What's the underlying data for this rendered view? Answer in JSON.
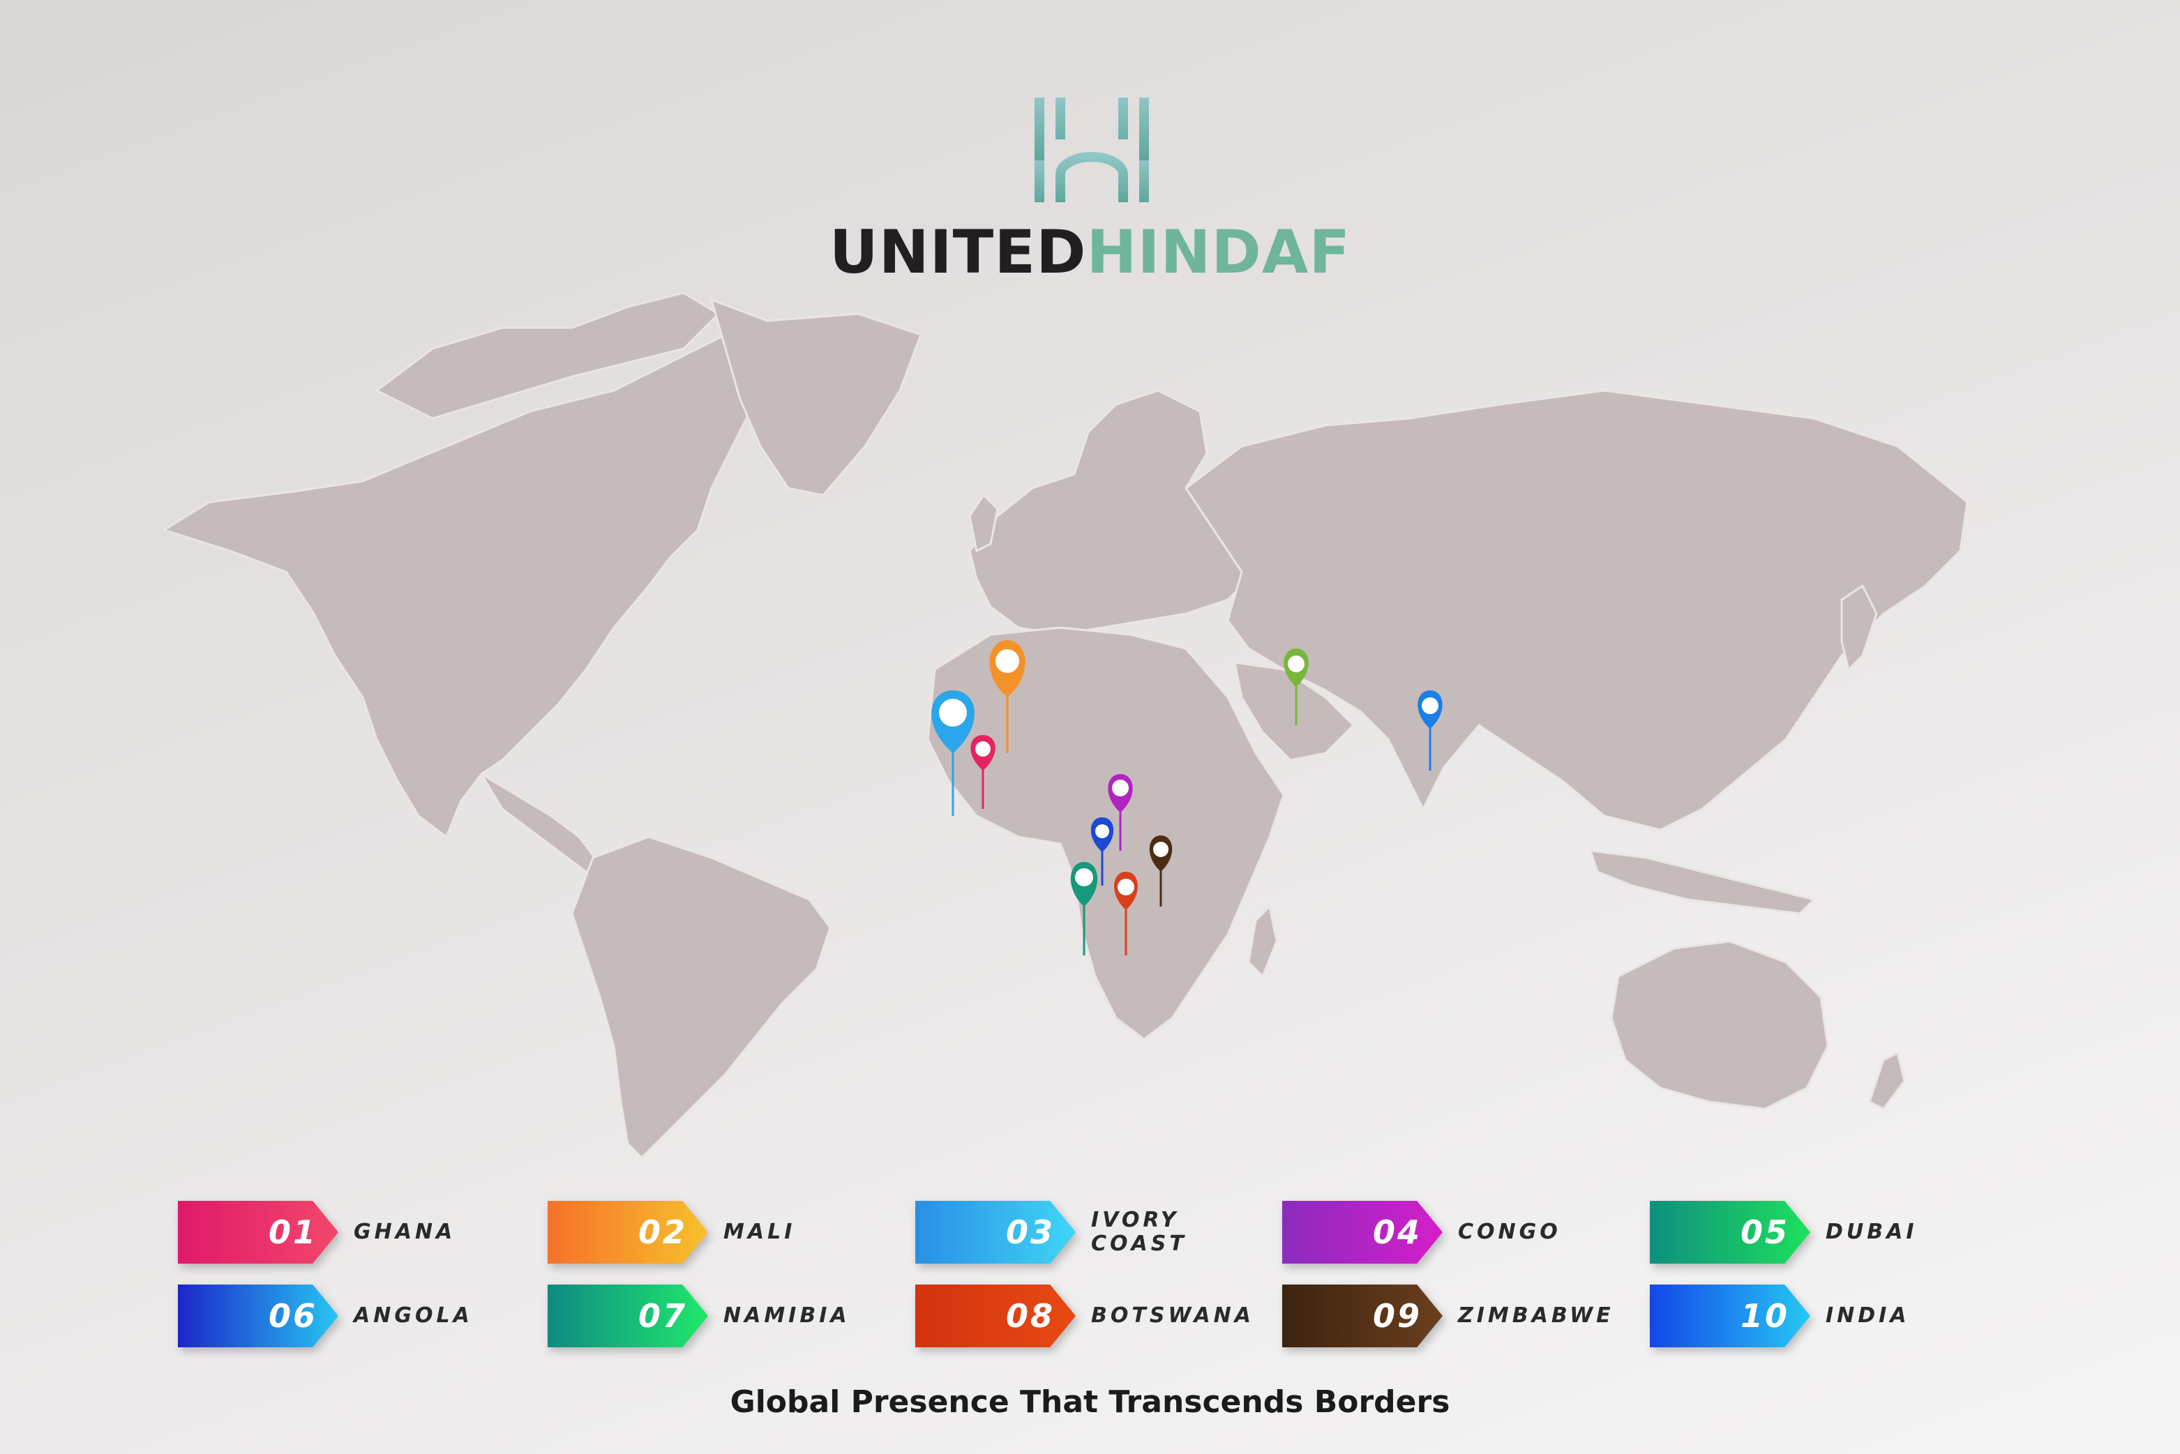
{
  "brand": {
    "name_part1": "UNITED",
    "name_part2": "HINDAF"
  },
  "tagline": "Global Presence That Transcends Borders",
  "colors": {
    "map_land": "#c6bbbb",
    "map_border": "#e9e2e2",
    "brand_teal": "#6fb59a",
    "brand_dark": "#231f20"
  },
  "legend": [
    {
      "number": "01",
      "country": "GHANA",
      "from": "#e0196a",
      "to": "#f2476b"
    },
    {
      "number": "02",
      "country": "MALI",
      "from": "#f5722a",
      "to": "#f7c12c"
    },
    {
      "number": "03",
      "country": "IVORY COAST",
      "from": "#2a8fe4",
      "to": "#3fd6f5"
    },
    {
      "number": "04",
      "country": "CONGO",
      "from": "#8b2bbd",
      "to": "#d51ec9"
    },
    {
      "number": "05",
      "country": "DUBAI",
      "from": "#0e8f7e",
      "to": "#1ee05d"
    },
    {
      "number": "06",
      "country": "ANGOLA",
      "from": "#1b26c8",
      "to": "#27c6f2"
    },
    {
      "number": "07",
      "country": "NAMIBIA",
      "from": "#0f8a83",
      "to": "#1fe86a"
    },
    {
      "number": "08",
      "country": "BOTSWANA",
      "from": "#d2330f",
      "to": "#e74a12"
    },
    {
      "number": "09",
      "country": "ZIMBABWE",
      "from": "#3d230f",
      "to": "#6a3f1e"
    },
    {
      "number": "10",
      "country": "INDIA",
      "from": "#1346e8",
      "to": "#25c9f4"
    }
  ],
  "pins": [
    {
      "name": "ivory-coast",
      "color": "#2aa6ea"
    },
    {
      "name": "mali",
      "color": "#f4922a"
    },
    {
      "name": "ghana",
      "color": "#e5245f"
    },
    {
      "name": "dubai",
      "color": "#79b63a"
    },
    {
      "name": "india",
      "color": "#1a7fe6"
    },
    {
      "name": "congo",
      "color": "#b124c2"
    },
    {
      "name": "angola",
      "color": "#1e49d6"
    },
    {
      "name": "zimbabwe",
      "color": "#4b2c14"
    },
    {
      "name": "namibia",
      "color": "#159a7a"
    },
    {
      "name": "botswana",
      "color": "#d8401c"
    }
  ]
}
